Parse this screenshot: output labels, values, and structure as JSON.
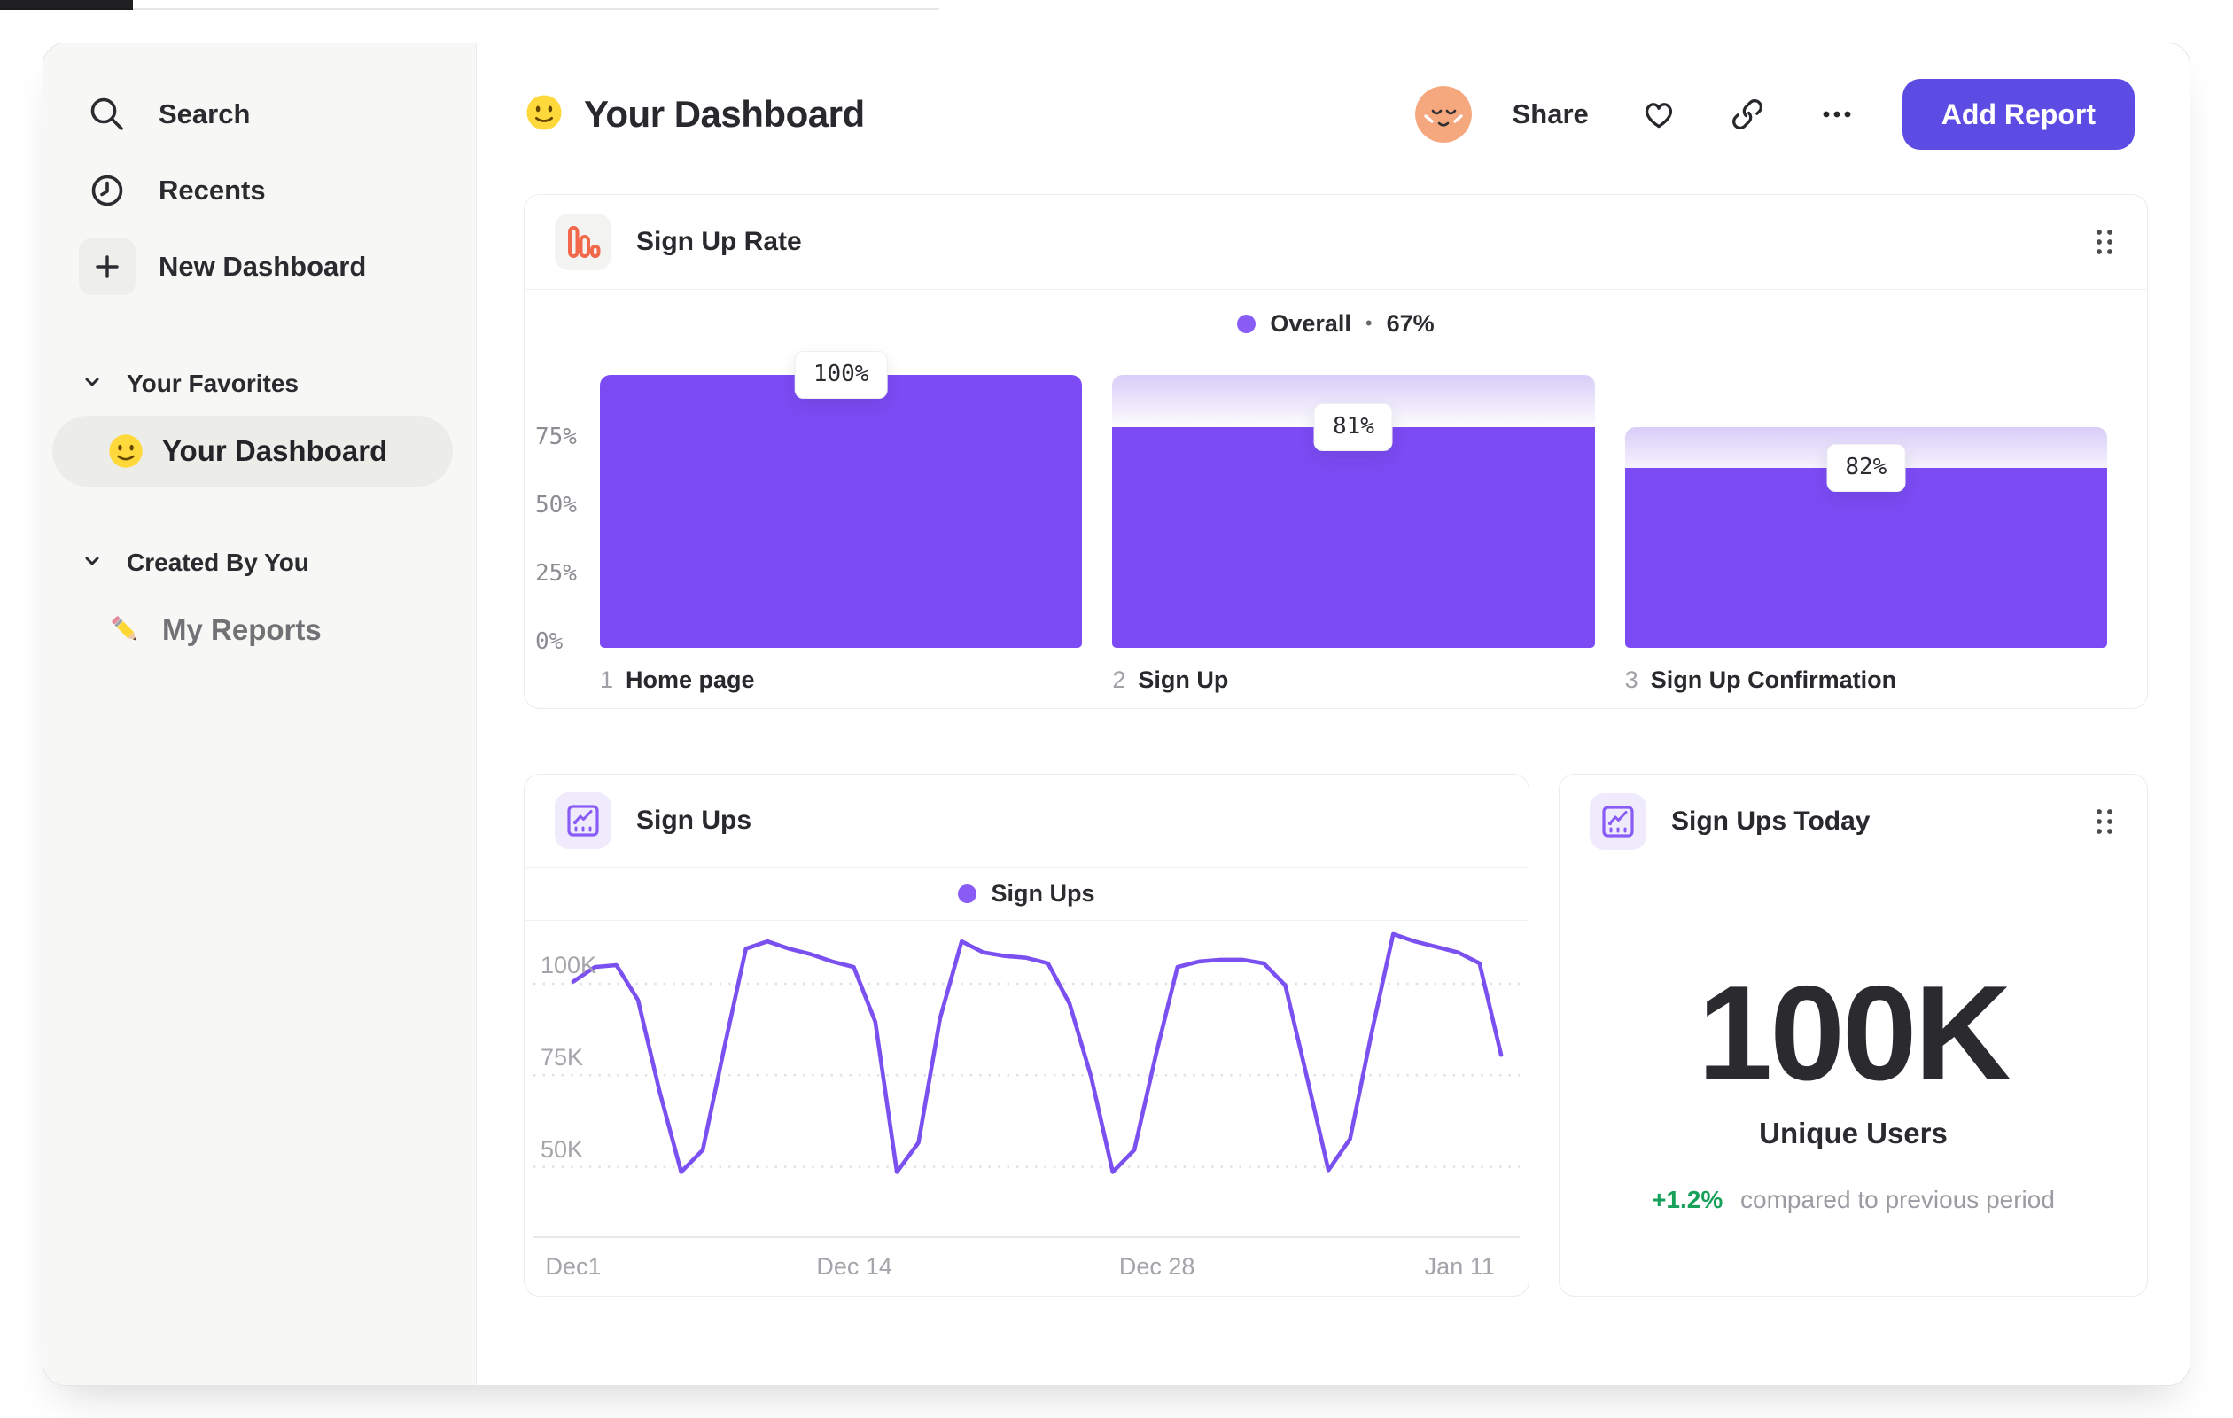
{
  "sidebar": {
    "nav": [
      {
        "label": "Search",
        "icon": "search-icon"
      },
      {
        "label": "Recents",
        "icon": "clock-icon"
      },
      {
        "label": "New Dashboard",
        "icon": "plus-icon"
      }
    ],
    "sections": [
      {
        "title": "Your Favorites",
        "items": [
          {
            "emoji": "slightly-smiling-face",
            "label": "Your Dashboard",
            "selected": true
          }
        ]
      },
      {
        "title": "Created By You",
        "items": [
          {
            "emoji": "pencil",
            "label": "My Reports",
            "selected": false
          }
        ]
      }
    ]
  },
  "header": {
    "emoji": "slightly-smiling-face",
    "title": "Your Dashboard",
    "share_label": "Share",
    "add_report_label": "Add Report",
    "icons": [
      "avatar",
      "heart-icon",
      "link-icon",
      "ellipsis-icon"
    ]
  },
  "cards": {
    "signup_rate": {
      "title": "Sign Up Rate",
      "legend_label": "Overall",
      "legend_separator": "•",
      "legend_value": "67%"
    },
    "signups": {
      "title": "Sign Ups",
      "legend_label": "Sign Ups"
    },
    "signups_today": {
      "title": "Sign Ups Today",
      "value": "100K",
      "value_label": "Unique Users",
      "delta": "+1.2%",
      "delta_caption": "compared to previous period"
    }
  },
  "colors": {
    "accent_purple": "#7C4BF4",
    "button_purple": "#5C4CE4",
    "legend_dot_purple": "#8A5CF6",
    "funnel_icon_orange": "#F2684B",
    "delta_green": "#16A15A",
    "sidebar_bg": "#F7F7F5"
  },
  "chart_data": [
    {
      "type": "bar",
      "subtype": "funnel",
      "title": "Sign Up Rate",
      "series_name": "Overall",
      "overall_conversion_pct": 67,
      "categories": [
        "Home page",
        "Sign Up",
        "Sign Up Confirmation"
      ],
      "step_numbers": [
        "1",
        "2",
        "3"
      ],
      "values_pct_overall": [
        100,
        81,
        66
      ],
      "ghost_top_pct": [
        100,
        100,
        81
      ],
      "bar_labels": [
        "100%",
        "81%",
        "82%"
      ],
      "y_ticks": [
        "75%",
        "50%",
        "25%",
        "0%"
      ],
      "y_tick_values": [
        75,
        50,
        25,
        0
      ],
      "ylim": [
        0,
        100
      ],
      "grid": false,
      "legend_position": "top-center"
    },
    {
      "type": "line",
      "title": "Sign Ups",
      "series_name": "Sign Ups",
      "x_ticks": [
        "Dec1",
        "Dec 14",
        "Dec 28",
        "Jan 11"
      ],
      "x_tick_days": [
        0,
        13,
        27,
        41
      ],
      "y_ticks": [
        "100K",
        "75K",
        "50K"
      ],
      "y_tick_values": [
        100,
        75,
        50
      ],
      "ylim": [
        38,
        112
      ],
      "xlim": [
        0,
        43
      ],
      "unit": "K",
      "values_k": [
        96,
        100,
        100.5,
        91,
        66,
        44,
        50,
        78,
        105,
        107,
        105,
        103.5,
        101.5,
        100,
        85,
        44,
        52,
        86,
        107,
        104,
        103,
        102.5,
        101,
        90,
        70,
        44,
        50,
        76,
        100,
        101.5,
        102,
        102,
        101,
        95,
        70,
        44.5,
        53,
        82,
        109,
        107,
        105.5,
        104,
        101,
        76
      ],
      "grid": "dotted-horizontal",
      "legend_position": "top-center"
    },
    {
      "type": "metric",
      "title": "Sign Ups Today",
      "value": "100K",
      "label": "Unique Users",
      "delta_pct": "+1.2%",
      "comparison": "compared to previous period"
    }
  ]
}
